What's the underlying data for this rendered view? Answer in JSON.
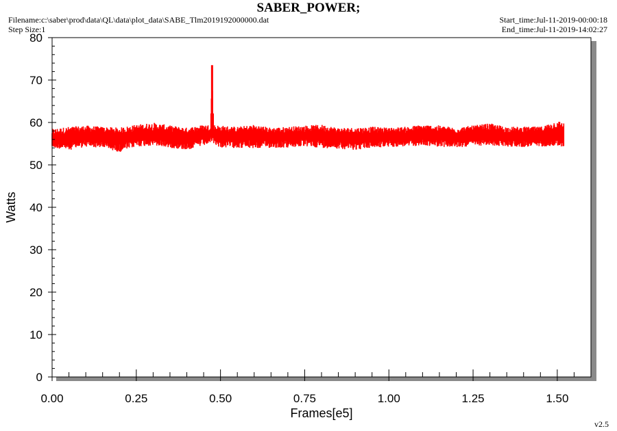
{
  "header": {
    "title": "SABER_POWER;",
    "filename": "Filename:c:\\saber\\prod\\data\\QL\\data\\plot_data\\SABE_Tlm2019192000000.dat",
    "step_size": "Step Size:1",
    "start_time": "Start_time:Jul-11-2019-00:00:18",
    "end_time": "End_time:Jul-11-2019-14:02:27"
  },
  "footer": {
    "version": "v2.5"
  },
  "chart_data": {
    "type": "line",
    "title": "SABER_POWER;",
    "xlabel": "Frames[e5]",
    "ylabel": "Watts",
    "xlim": [
      0,
      1.6
    ],
    "ylim": [
      0,
      80
    ],
    "x_ticks": [
      "0.00",
      "0.25",
      "0.50",
      "0.75",
      "1.00",
      "1.25",
      "1.50"
    ],
    "y_ticks": [
      "0",
      "10",
      "20",
      "30",
      "40",
      "50",
      "60",
      "70",
      "80"
    ],
    "grid": false,
    "series_color": "#ff0000",
    "series": [
      {
        "x": [
          0.0,
          0.05,
          0.1,
          0.15,
          0.2,
          0.25,
          0.3,
          0.35,
          0.4,
          0.45,
          0.47,
          0.475,
          0.48,
          0.5,
          0.55,
          0.6,
          0.65,
          0.7,
          0.75,
          0.8,
          0.85,
          0.9,
          0.95,
          1.0,
          1.05,
          1.1,
          1.15,
          1.2,
          1.25,
          1.3,
          1.35,
          1.4,
          1.45,
          1.5,
          1.52
        ],
        "mean": [
          56.2,
          56.4,
          56.9,
          56.6,
          56.1,
          57.0,
          57.1,
          56.8,
          56.5,
          57.0,
          57.2,
          57.4,
          57.1,
          56.8,
          56.7,
          56.9,
          56.6,
          56.8,
          56.9,
          57.0,
          56.5,
          56.4,
          56.6,
          56.6,
          56.7,
          57.1,
          56.8,
          56.6,
          57.0,
          57.1,
          56.7,
          56.6,
          56.9,
          57.3,
          57.3
        ],
        "min": [
          54.0,
          53.5,
          54.2,
          54.0,
          53.0,
          54.3,
          54.5,
          54.0,
          53.5,
          54.5,
          55.0,
          55.5,
          55.0,
          54.0,
          54.0,
          53.8,
          54.0,
          54.0,
          54.3,
          54.0,
          53.8,
          53.5,
          54.0,
          54.2,
          54.3,
          54.5,
          54.3,
          54.0,
          54.5,
          54.5,
          54.3,
          54.2,
          54.3,
          54.5,
          54.0
        ],
        "max": [
          58.5,
          59.0,
          59.3,
          59.0,
          58.8,
          59.5,
          60.0,
          59.3,
          58.8,
          59.5,
          59.5,
          73.5,
          59.5,
          59.3,
          59.0,
          59.5,
          58.8,
          59.0,
          59.3,
          59.5,
          58.8,
          58.8,
          59.0,
          58.8,
          59.0,
          59.5,
          59.3,
          58.8,
          59.3,
          59.8,
          59.0,
          59.0,
          59.0,
          60.5,
          60.0
        ]
      }
    ]
  }
}
